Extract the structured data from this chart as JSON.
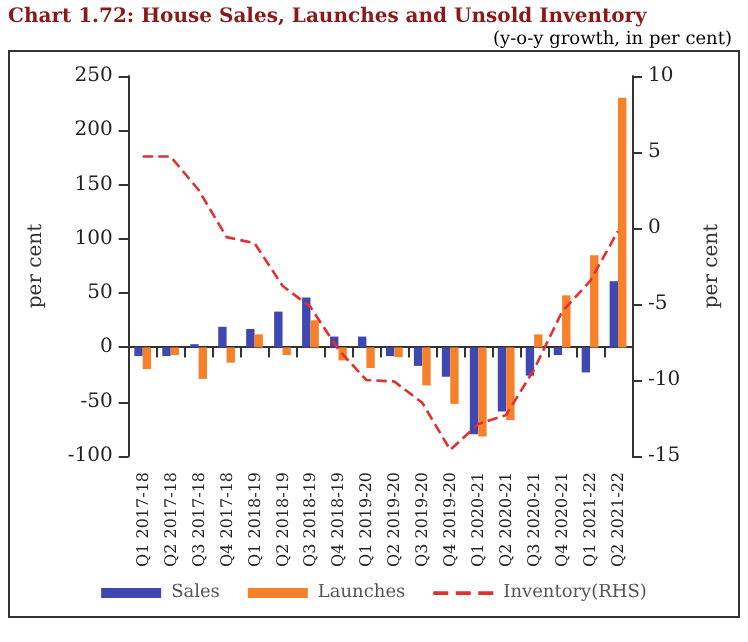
{
  "chart_data": {
    "type": "bar",
    "title": "Chart 1.72: House Sales, Launches and Unsold Inventory",
    "subtitle": "(y-o-y growth, in per cent)",
    "ylabel": "per cent",
    "y2label": "per cent",
    "categories": [
      "Q1 2017-18",
      "Q2 2017-18",
      "Q3 2017-18",
      "Q4 2017-18",
      "Q1 2018-19",
      "Q2 2018-19",
      "Q3 2018-19",
      "Q4 2018-19",
      "Q1 2019-20",
      "Q2 2019-20",
      "Q3 2019-20",
      "Q4 2019-20",
      "Q1 2020-21",
      "Q2 2020-21",
      "Q3 2020-21",
      "Q4 2020-21",
      "Q1 2021-22",
      "Q2 2021-22"
    ],
    "series": [
      {
        "name": "Sales",
        "color": "#3f48b0",
        "values": [
          -8,
          -8,
          3,
          19,
          17,
          33,
          46,
          10,
          10,
          -8,
          -17,
          -27,
          -80,
          -59,
          -26,
          -7,
          -23,
          61
        ]
      },
      {
        "name": "Launches",
        "color": "#f5822a",
        "values": [
          -20,
          -7,
          -29,
          -14,
          12,
          -7,
          25,
          -12,
          -19,
          -9,
          -35,
          -52,
          -82,
          -67,
          12,
          48,
          85,
          230
        ]
      },
      {
        "name": "Inventory(RHS)",
        "color": "#e03030",
        "type": "line",
        "axis": "y2",
        "line_style": "dashed",
        "values": [
          4.7,
          4.7,
          2.5,
          -0.6,
          -1.0,
          -3.8,
          -5.2,
          -8.0,
          -10.0,
          -10.1,
          -11.5,
          -14.6,
          -12.9,
          -12.3,
          -9.3,
          -5.5,
          -3.5,
          -0.2
        ]
      }
    ],
    "ylim": [
      -100,
      250
    ],
    "yticks": [
      -100,
      -50,
      0,
      50,
      100,
      150,
      200,
      250
    ],
    "y2lim": [
      -15,
      10
    ],
    "y2ticks": [
      -15,
      -10,
      -5,
      0,
      5,
      10
    ],
    "legend": "bottom",
    "marker": "none"
  }
}
